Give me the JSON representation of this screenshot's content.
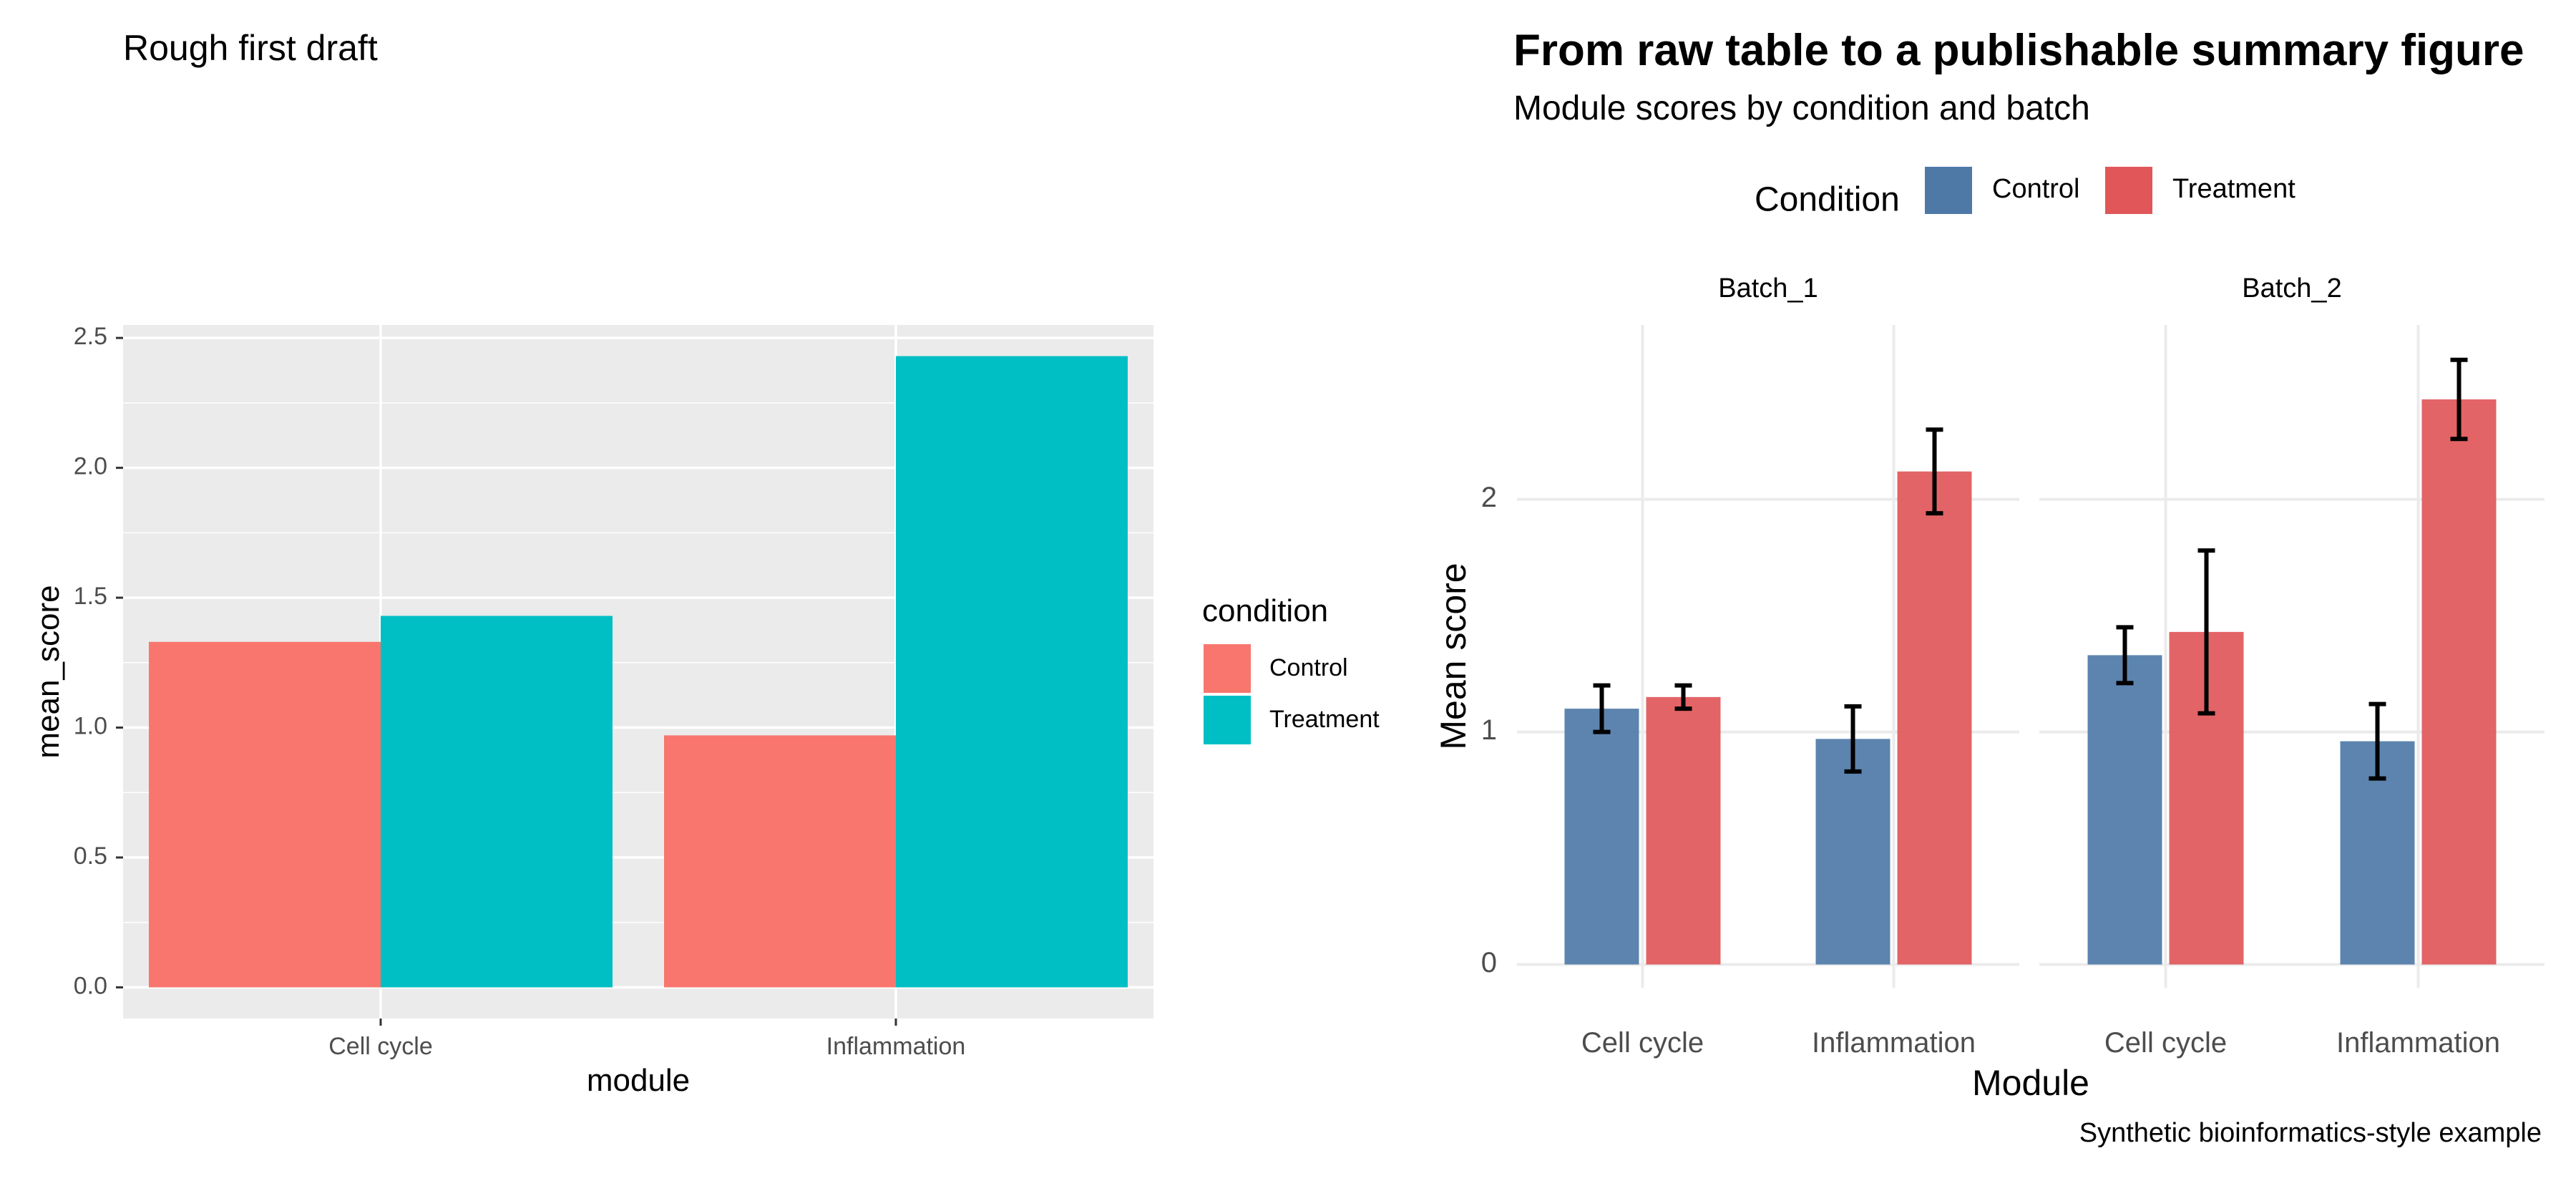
{
  "chart_data": [
    {
      "type": "bar",
      "title": "Rough first draft",
      "xlabel": "module",
      "ylabel": "mean_score",
      "categories": [
        "Cell cycle",
        "Inflammation"
      ],
      "ylim": [
        -0.12,
        2.55
      ],
      "yticks": [
        "0.0",
        "0.5",
        "1.0",
        "1.5",
        "2.0",
        "2.5"
      ],
      "grid": true,
      "legend_title": "condition",
      "legend_position": "right",
      "series": [
        {
          "name": "Control",
          "color": "#F8766D",
          "values": [
            1.33,
            0.97
          ]
        },
        {
          "name": "Treatment",
          "color": "#00BFC4",
          "values": [
            1.43,
            2.43
          ]
        }
      ]
    },
    {
      "type": "bar",
      "title": "From raw table to a publishable summary figure",
      "subtitle": "Module scores by condition and batch",
      "xlabel": "Module",
      "ylabel": "Mean score",
      "caption": "Synthetic bioinformatics-style example",
      "categories": [
        "Cell cycle",
        "Inflammation"
      ],
      "facets": [
        "Batch_1",
        "Batch_2"
      ],
      "ylim": [
        -0.1,
        2.75
      ],
      "yticks": [
        "0",
        "1",
        "2"
      ],
      "grid": true,
      "legend_title": "Condition",
      "legend_position": "top",
      "series": [
        {
          "name": "Control",
          "color": "#4E79A7",
          "values": [
            [
              1.1,
              0.97
            ],
            [
              1.33,
              0.96
            ]
          ],
          "error": [
            [
              0.1,
              0.14
            ],
            [
              0.12,
              0.16
            ]
          ]
        },
        {
          "name": "Treatment",
          "color": "#E15759",
          "values": [
            [
              1.15,
              2.12
            ],
            [
              1.43,
              2.43
            ]
          ],
          "error": [
            [
              0.05,
              0.18
            ],
            [
              0.35,
              0.17
            ]
          ]
        }
      ]
    }
  ]
}
